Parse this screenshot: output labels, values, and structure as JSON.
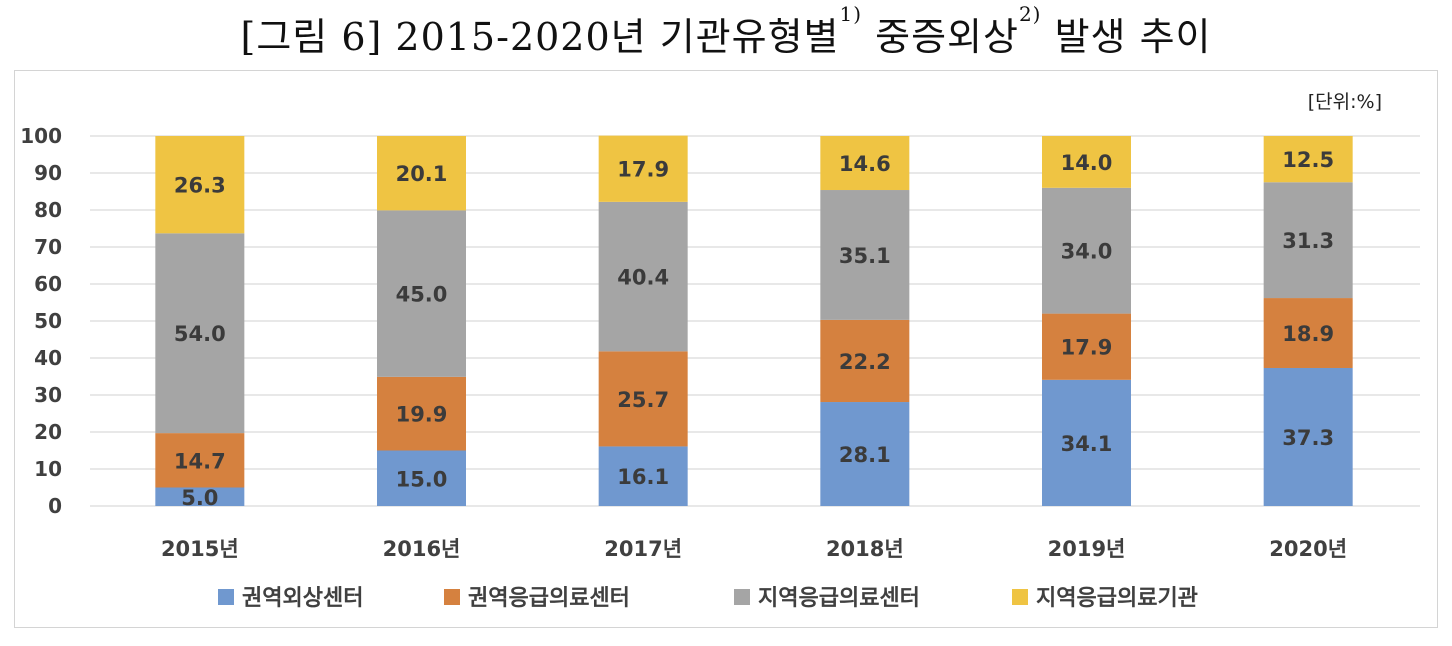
{
  "title": {
    "main": "[그림 6] 2015-2020년 기관유형별",
    "sup1": "1)",
    "mid": " 중증외상",
    "sup2": "2)",
    "end": " 발생 추이"
  },
  "unit_label": "[단위:%]",
  "chart_data": {
    "type": "bar",
    "stacked": true,
    "categories": [
      "2015년",
      "2016년",
      "2017년",
      "2018년",
      "2019년",
      "2020년"
    ],
    "series": [
      {
        "name": "권역외상센터",
        "color": "#7098cf",
        "values": [
          5.0,
          15.0,
          16.1,
          28.1,
          34.1,
          37.3
        ]
      },
      {
        "name": "권역응급의료센터",
        "color": "#d5813f",
        "values": [
          14.7,
          19.9,
          25.7,
          22.2,
          17.9,
          18.9
        ]
      },
      {
        "name": "지역응급의료센터",
        "color": "#a5a5a5",
        "values": [
          54.0,
          45.0,
          40.4,
          35.1,
          34.0,
          31.3
        ]
      },
      {
        "name": "지역응급의료기관",
        "color": "#efc443",
        "values": [
          26.3,
          20.1,
          17.9,
          14.6,
          14.0,
          12.5
        ]
      }
    ],
    "ylim": [
      0,
      100
    ],
    "yticks": [
      0,
      10,
      20,
      30,
      40,
      50,
      60,
      70,
      80,
      90,
      100
    ],
    "grid": true,
    "legend": "bottom"
  }
}
